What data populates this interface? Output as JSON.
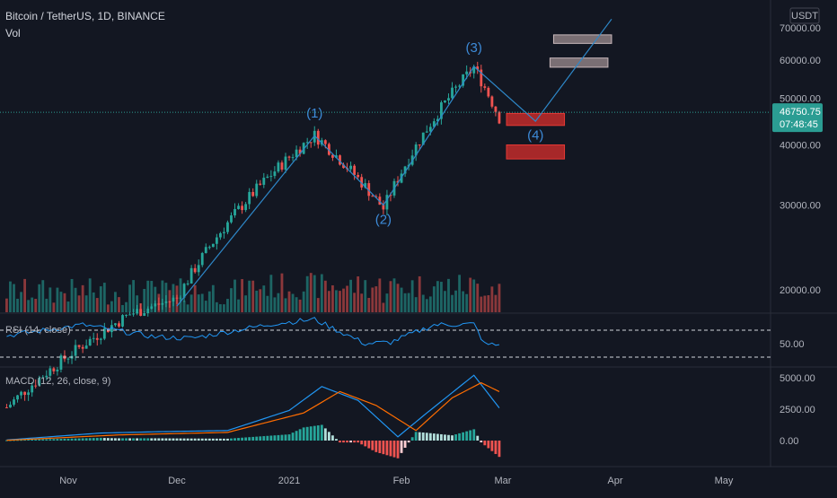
{
  "header": {
    "symbol_line": "Bitcoin / TetherUS, 1D, BINANCE",
    "vol_label": "Vol"
  },
  "colors": {
    "background": "#131722",
    "up": "#26a69a",
    "down": "#ef5350",
    "wave_line": "#2e88c9",
    "price_line": "#2b9d93",
    "macd_line": "#2196f3",
    "signal_line": "#ff6d00",
    "rsi_line": "#2196f3",
    "zone_red": "#b82a2a",
    "zone_gray": "#9e8e90"
  },
  "chart_data": [
    {
      "type": "candlestick",
      "title": "Bitcoin / TetherUS, 1D, BINANCE",
      "currency": "USDT",
      "y_ticks": [
        "20000.00",
        "30000.00",
        "40000.00",
        "50000.00",
        "60000.00",
        "70000.00"
      ],
      "y_tick_values": [
        20000,
        30000,
        40000,
        50000,
        60000,
        70000
      ],
      "x_ticks": [
        {
          "label": "Nov",
          "date": "2020-11-01"
        },
        {
          "label": "Dec",
          "date": "2020-12-01"
        },
        {
          "label": "2021",
          "date": "2021-01-01"
        },
        {
          "label": "Feb",
          "date": "2021-02-01"
        },
        {
          "label": "Mar",
          "date": "2021-03-01"
        },
        {
          "label": "Apr",
          "date": "2021-04-01"
        },
        {
          "label": "May",
          "date": "2021-05-01"
        }
      ],
      "last_price": "46750.75",
      "countdown": "07:48:45",
      "key_points": [
        {
          "date": "2020-10-15",
          "price": 11400
        },
        {
          "date": "2020-11-18",
          "price": 17800
        },
        {
          "date": "2020-12-01",
          "price": 19200
        },
        {
          "date": "2021-01-08",
          "price": 41900
        },
        {
          "date": "2021-01-27",
          "price": 29500
        },
        {
          "date": "2021-02-21",
          "price": 58000
        },
        {
          "date": "2021-02-28",
          "price": 45500
        }
      ],
      "wave_path": [
        {
          "date": "2020-12-01",
          "price": 18500
        },
        {
          "date": "2021-01-08",
          "price": 41800
        },
        {
          "date": "2021-01-27",
          "price": 30000
        },
        {
          "date": "2021-02-21",
          "price": 58200
        },
        {
          "date": "2021-03-10",
          "price": 44800
        },
        {
          "date": "2021-03-31",
          "price": 73000
        }
      ],
      "wave_labels": [
        {
          "text": "(1)",
          "date": "2021-01-08",
          "price": 45600
        },
        {
          "text": "(2)",
          "date": "2021-01-27",
          "price": 27400
        },
        {
          "text": "(3)",
          "date": "2021-02-21",
          "price": 62400
        },
        {
          "text": "(4)",
          "date": "2021-03-10",
          "price": 41000
        }
      ],
      "zones": [
        {
          "kind": "red",
          "from_date": "2021-03-02",
          "to_date": "2021-03-18",
          "low": 43900,
          "high": 46500
        },
        {
          "kind": "red",
          "from_date": "2021-03-02",
          "to_date": "2021-03-18",
          "low": 37400,
          "high": 40000
        },
        {
          "kind": "gray",
          "from_date": "2021-03-14",
          "to_date": "2021-03-30",
          "low": 58000,
          "high": 60600
        },
        {
          "kind": "gray",
          "from_date": "2021-03-15",
          "to_date": "2021-03-31",
          "low": 65000,
          "high": 67700
        }
      ]
    },
    {
      "type": "line",
      "title": "RSI (14, close)",
      "y_ticks": [
        "50.00"
      ],
      "y_tick_values": [
        50
      ],
      "bands": [
        70,
        30
      ],
      "key_points": [
        {
          "date": "2020-10-15",
          "value": 62
        },
        {
          "date": "2020-11-05",
          "value": 78
        },
        {
          "date": "2020-11-25",
          "value": 60
        },
        {
          "date": "2020-12-05",
          "value": 58
        },
        {
          "date": "2020-12-28",
          "value": 80
        },
        {
          "date": "2021-01-08",
          "value": 86
        },
        {
          "date": "2021-01-22",
          "value": 50
        },
        {
          "date": "2021-01-29",
          "value": 52
        },
        {
          "date": "2021-02-10",
          "value": 78
        },
        {
          "date": "2021-02-21",
          "value": 79
        },
        {
          "date": "2021-02-24",
          "value": 49
        },
        {
          "date": "2021-02-28",
          "value": 48
        }
      ]
    },
    {
      "type": "line",
      "title": "MACD (12, 26, close, 9)",
      "y_ticks": [
        "0.00",
        "2500.00",
        "5000.00"
      ],
      "y_tick_values": [
        0,
        2500,
        5000
      ],
      "macd_points": [
        {
          "date": "2020-10-15",
          "value": 50
        },
        {
          "date": "2020-11-10",
          "value": 600
        },
        {
          "date": "2020-11-25",
          "value": 700
        },
        {
          "date": "2020-12-15",
          "value": 800
        },
        {
          "date": "2021-01-01",
          "value": 2400
        },
        {
          "date": "2021-01-10",
          "value": 4300
        },
        {
          "date": "2021-01-20",
          "value": 3200
        },
        {
          "date": "2021-01-31",
          "value": 300
        },
        {
          "date": "2021-02-08",
          "value": 2200
        },
        {
          "date": "2021-02-21",
          "value": 5200
        },
        {
          "date": "2021-02-28",
          "value": 2600
        }
      ],
      "signal_points": [
        {
          "date": "2020-10-15",
          "value": 20
        },
        {
          "date": "2020-11-15",
          "value": 450
        },
        {
          "date": "2020-12-15",
          "value": 650
        },
        {
          "date": "2021-01-05",
          "value": 2200
        },
        {
          "date": "2021-01-15",
          "value": 3900
        },
        {
          "date": "2021-01-25",
          "value": 2800
        },
        {
          "date": "2021-02-05",
          "value": 800
        },
        {
          "date": "2021-02-15",
          "value": 3400
        },
        {
          "date": "2021-02-23",
          "value": 4600
        },
        {
          "date": "2021-02-28",
          "value": 3900
        }
      ]
    }
  ]
}
